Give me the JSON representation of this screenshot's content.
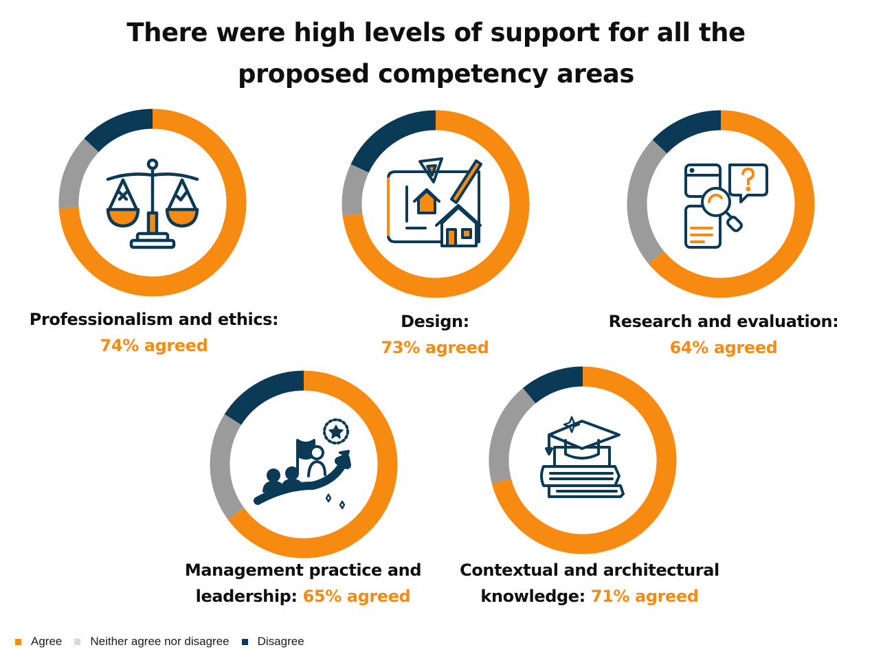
{
  "title_line1": "There were high levels of support for all the",
  "title_line2": "proposed  competency areas",
  "colors": {
    "agree": "#f78a10",
    "neutral": "#9b9b9b",
    "disagree": "#0b3a57",
    "icon_dark": "#0b3a57",
    "icon_orange": "#f78a10"
  },
  "chart_data": [
    {
      "type": "pie",
      "name": "Professionalism and ethics:",
      "labels": [
        "Agree",
        "Neither agree nor disagree",
        "Disagree"
      ],
      "values": [
        74,
        13,
        13
      ],
      "label_line1": "Professionalism and ethics:",
      "label_line2_prefix": "",
      "label_pct": "74% agreed",
      "icon": "scales-of-justice-icon"
    },
    {
      "type": "pie",
      "name": "Design:",
      "labels": [
        "Agree",
        "Neither agree nor disagree",
        "Disagree"
      ],
      "values": [
        73,
        9,
        18
      ],
      "label_line1": "Design:",
      "label_line2_prefix": "",
      "label_pct": "73% agreed",
      "icon": "blueprint-house-icon"
    },
    {
      "type": "pie",
      "name": "Research and evaluation:",
      "labels": [
        "Agree",
        "Neither agree nor disagree",
        "Disagree"
      ],
      "values": [
        64,
        23,
        13
      ],
      "label_line1": "Research and evaluation:",
      "label_line2_prefix": "",
      "label_pct": "64% agreed",
      "icon": "research-magnifier-icon"
    },
    {
      "type": "pie",
      "name": "Management practice and leadership:",
      "labels": [
        "Agree",
        "Neither agree nor disagree",
        "Disagree"
      ],
      "values": [
        65,
        19,
        16
      ],
      "label_line1": "Management practice and",
      "label_line2_prefix": "leadership: ",
      "label_pct": "65% agreed",
      "icon": "leadership-growth-icon"
    },
    {
      "type": "pie",
      "name": "Contextual and architectural knowledge:",
      "labels": [
        "Agree",
        "Neither agree nor disagree",
        "Disagree"
      ],
      "values": [
        71,
        18,
        11
      ],
      "label_line1": "Contextual and architectural",
      "label_line2_prefix": "knowledge: ",
      "label_pct": "71% agreed",
      "icon": "graduation-books-icon"
    }
  ],
  "legend": [
    {
      "label": "Agree",
      "color": "#f78a10"
    },
    {
      "label": "Neither agree nor disagree",
      "color": "#d9d9d9"
    },
    {
      "label": "Disagree",
      "color": "#0b3a57"
    }
  ]
}
